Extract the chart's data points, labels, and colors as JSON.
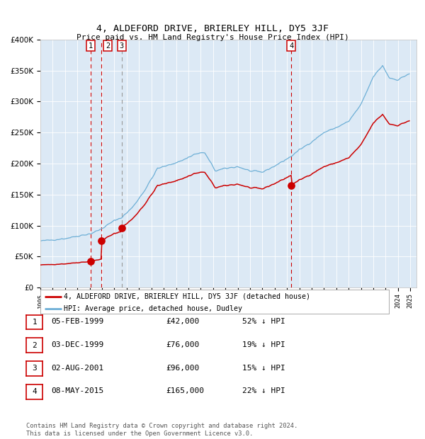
{
  "title": "4, ALDEFORD DRIVE, BRIERLEY HILL, DY5 3JF",
  "subtitle": "Price paid vs. HM Land Registry's House Price Index (HPI)",
  "legend_line1": "4, ALDEFORD DRIVE, BRIERLEY HILL, DY5 3JF (detached house)",
  "legend_line2": "HPI: Average price, detached house, Dudley",
  "sale_dates_year": [
    1999.09,
    1999.92,
    2001.58,
    2015.35
  ],
  "sale_prices": [
    42000,
    76000,
    96000,
    165000
  ],
  "sale_labels": [
    "1",
    "2",
    "3",
    "4"
  ],
  "table_rows": [
    [
      "1",
      "05-FEB-1999",
      "£42,000",
      "52% ↓ HPI"
    ],
    [
      "2",
      "03-DEC-1999",
      "£76,000",
      "19% ↓ HPI"
    ],
    [
      "3",
      "02-AUG-2001",
      "£96,000",
      "15% ↓ HPI"
    ],
    [
      "4",
      "08-MAY-2015",
      "£165,000",
      "22% ↓ HPI"
    ]
  ],
  "footer": "Contains HM Land Registry data © Crown copyright and database right 2024.\nThis data is licensed under the Open Government Licence v3.0.",
  "hpi_color": "#6dafd6",
  "price_color": "#cc0000",
  "marker_color": "#cc0000",
  "plot_bg": "#dce9f5",
  "ylim": [
    0,
    400000
  ],
  "yticks": [
    0,
    50000,
    100000,
    150000,
    200000,
    250000,
    300000,
    350000,
    400000
  ],
  "dashed_line_color": "#cc0000",
  "gray_line_color": "#999999",
  "xlim": [
    1995.0,
    2025.5
  ]
}
